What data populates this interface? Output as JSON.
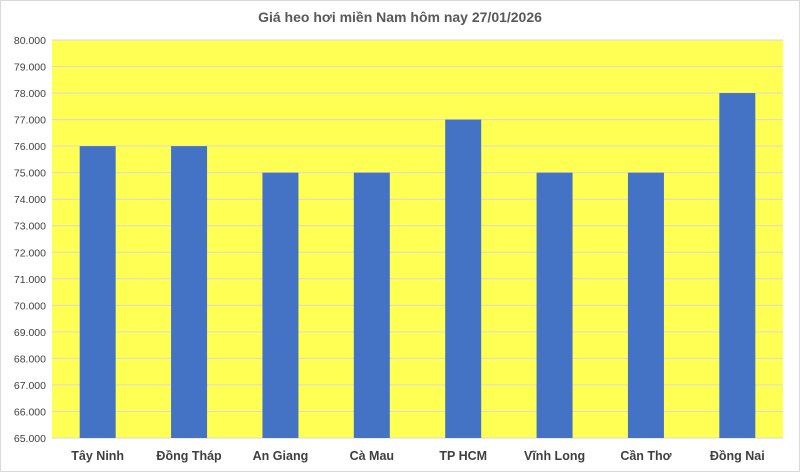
{
  "chart_data": {
    "type": "bar",
    "title": "Giá heo hơi miền Nam hôm nay 27/01/2026",
    "categories": [
      "Tây Ninh",
      "Đồng Tháp",
      "An Giang",
      "Cà Mau",
      "TP HCM",
      "Vĩnh Long",
      "Cần Thơ",
      "Đồng Nai"
    ],
    "values": [
      76000,
      76000,
      75000,
      75000,
      77000,
      75000,
      75000,
      78000
    ],
    "xlabel": "",
    "ylabel": "",
    "ylim": [
      65000,
      80000
    ],
    "yticks": [
      "65.000",
      "66.000",
      "67.000",
      "68.000",
      "69.000",
      "70.000",
      "71.000",
      "72.000",
      "73.000",
      "74.000",
      "75.000",
      "76.000",
      "77.000",
      "78.000",
      "79.000",
      "80.000"
    ],
    "grid": true,
    "legend": "none",
    "colors": {
      "bar": "#4472C4",
      "plot_background": "#FFFF54",
      "gridline": "#D9D9D9"
    }
  }
}
